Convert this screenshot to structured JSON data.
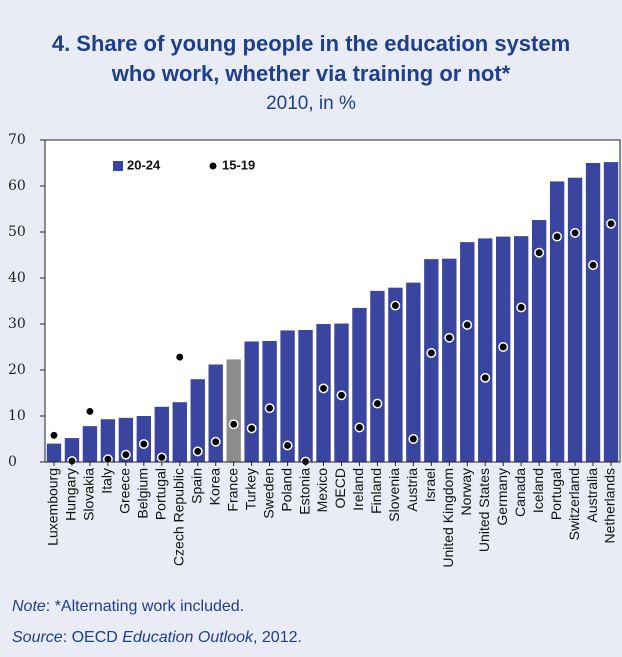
{
  "chart_data": {
    "type": "bar",
    "title": [
      "4. Share of young people in the education system",
      "who work, whether via training or not*"
    ],
    "subtitle": "2010, in %",
    "categories": [
      "Luxembourg",
      "Hungary",
      "Slovakia",
      "Italy",
      "Greece",
      "Belgium",
      "Portugal",
      "Czech Republic",
      "Spain",
      "Korea",
      "France",
      "Turkey",
      "Sweden",
      "Poland",
      "Estonia",
      "Mexico",
      "OECD",
      "Ireland",
      "Finland",
      "Slovenia",
      "Austria",
      "Israel",
      "United Kingdom",
      "Norway",
      "United States",
      "Germany",
      "Canada",
      "Iceland",
      "Portugal",
      "Switzerland",
      "Australia",
      "Netherlands"
    ],
    "series": [
      {
        "name": "20-24",
        "style": "bar",
        "color": "#3a45a0",
        "colors": [
          "#3a45a0",
          "#3a45a0",
          "#3a45a0",
          "#3a45a0",
          "#3a45a0",
          "#3a45a0",
          "#3a45a0",
          "#3a45a0",
          "#3a45a0",
          "#3a45a0",
          "#8c8c8c",
          "#3a45a0",
          "#3a45a0",
          "#3a45a0",
          "#3a45a0",
          "#3a45a0",
          "#3a45a0",
          "#3a45a0",
          "#3a45a0",
          "#3a45a0",
          "#3a45a0",
          "#3a45a0",
          "#3a45a0",
          "#3a45a0",
          "#3a45a0",
          "#3a45a0",
          "#3a45a0",
          "#3a45a0",
          "#3a45a0",
          "#3a45a0",
          "#3a45a0",
          "#3a45a0"
        ],
        "values": [
          4,
          5.2,
          7.8,
          9.3,
          9.6,
          10,
          12,
          13,
          18,
          21.2,
          22.3,
          26.2,
          26.3,
          28.6,
          28.7,
          30,
          30.1,
          33.5,
          37.2,
          37.9,
          39,
          44.1,
          44.2,
          47.8,
          48.6,
          49,
          49.1,
          52.6,
          61,
          61.8,
          65,
          65.2
        ]
      },
      {
        "name": "15-19",
        "style": "dot",
        "color": "#000000",
        "values": [
          5.8,
          0.2,
          11,
          0.6,
          1.6,
          3.9,
          1,
          22.8,
          2.3,
          4.4,
          8.2,
          7.3,
          11.7,
          3.6,
          0.1,
          16,
          14.5,
          7.5,
          12.7,
          34,
          5,
          23.7,
          27,
          29.8,
          18.3,
          25,
          33.6,
          45.5,
          49,
          49.8,
          42.8,
          51.8
        ]
      }
    ],
    "ylim": [
      0,
      70
    ],
    "yticks": [
      0,
      10,
      20,
      30,
      40,
      50,
      60,
      70
    ],
    "legend": "top-left",
    "note": {
      "label": "Note",
      "text": ": *Alternating work included."
    },
    "source": [
      "Source",
      ": OECD ",
      "Education Outlook",
      ", 2012."
    ]
  }
}
